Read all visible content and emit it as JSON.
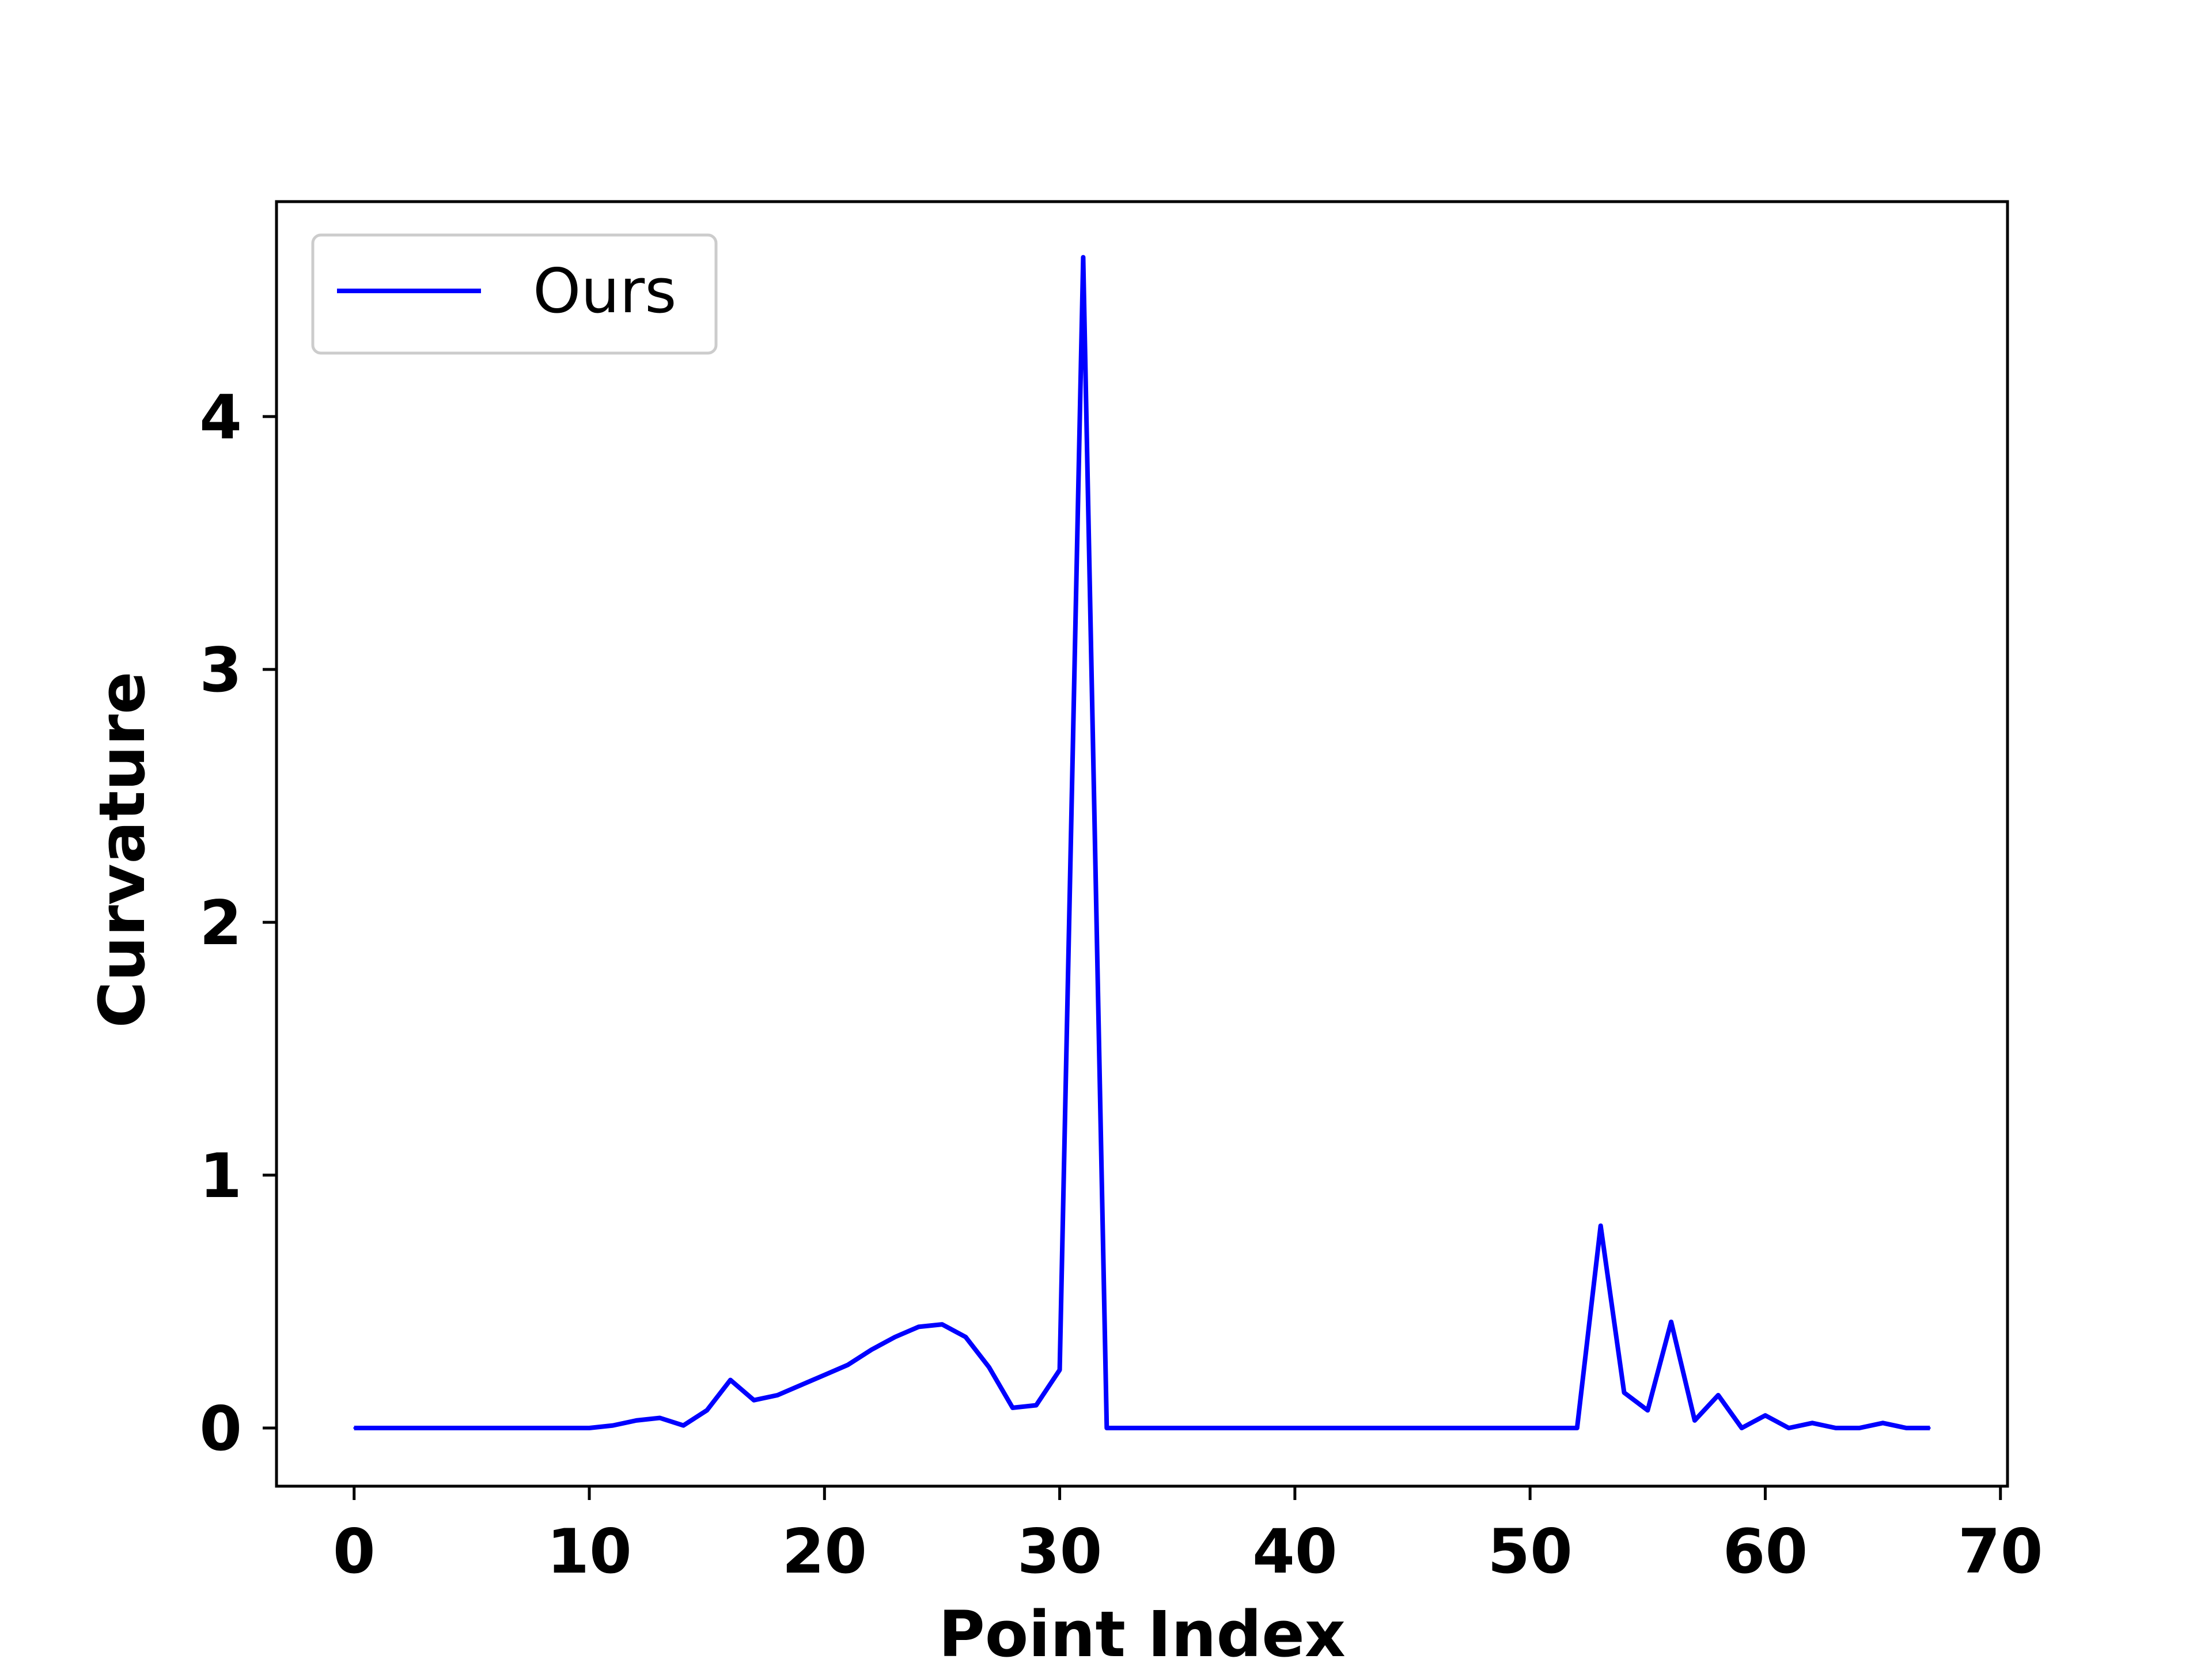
{
  "chart_data": {
    "type": "line",
    "title": "",
    "xlabel": "Point Index",
    "ylabel": "Curvature",
    "xlim": [
      -3.3,
      70.3
    ],
    "ylim": [
      -0.23,
      4.85
    ],
    "xticks": [
      0,
      10,
      20,
      30,
      40,
      50,
      60,
      70
    ],
    "yticks": [
      0,
      1,
      2,
      3,
      4
    ],
    "grid": false,
    "legend_position": "top-left",
    "colors": {
      "line": "#0000ff",
      "axes": "#000000",
      "legend_border": "#cccccc"
    },
    "series": [
      {
        "name": "Ours",
        "x": [
          0,
          1,
          2,
          3,
          4,
          5,
          6,
          7,
          8,
          9,
          10,
          11,
          12,
          13,
          14,
          15,
          16,
          17,
          18,
          19,
          20,
          21,
          22,
          23,
          24,
          25,
          26,
          27,
          28,
          29,
          30,
          31,
          32,
          33,
          34,
          35,
          36,
          37,
          38,
          39,
          40,
          41,
          42,
          43,
          44,
          45,
          46,
          47,
          48,
          49,
          50,
          51,
          52,
          53,
          54,
          55,
          56,
          57,
          58,
          59,
          60,
          61,
          62,
          63,
          64,
          65,
          66,
          67
        ],
        "y": [
          0,
          0,
          0,
          0,
          0,
          0,
          0,
          0,
          0,
          0,
          0,
          0.01,
          0.03,
          0.04,
          0.01,
          0.07,
          0.19,
          0.11,
          0.13,
          0.17,
          0.21,
          0.25,
          0.31,
          0.36,
          0.4,
          0.41,
          0.36,
          0.24,
          0.08,
          0.09,
          0.23,
          4.63,
          0,
          0,
          0,
          0,
          0,
          0,
          0,
          0,
          0,
          0,
          0,
          0,
          0,
          0,
          0,
          0,
          0,
          0,
          0,
          0,
          0,
          0.8,
          0.14,
          0.07,
          0.42,
          0.03,
          0.13,
          0,
          0.05,
          0,
          0.02,
          0,
          0,
          0.02,
          0,
          0
        ]
      }
    ]
  }
}
